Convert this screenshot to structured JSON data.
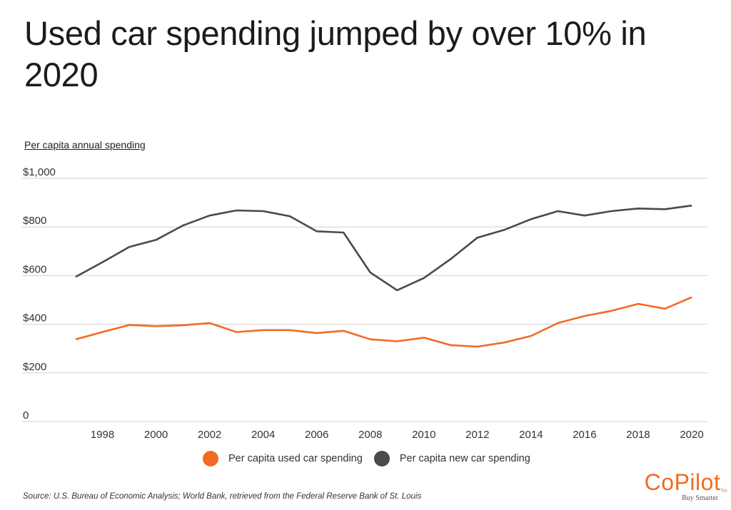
{
  "title": "Used car spending jumped by over 10% in 2020",
  "source": "Source:  U.S. Bureau of Economic Analysis;  World Bank, retrieved from the Federal Reserve Bank of St. Louis",
  "logo": {
    "brand": "CoPilot",
    "tm": "TM",
    "tagline": "Buy Smarter",
    "color": "#f26b22"
  },
  "chart_data": {
    "type": "line",
    "title": "Used car spending jumped by over 10% in 2020",
    "xlabel": "",
    "ylabel": "Per capita annual spending",
    "ylim": [
      0,
      1000
    ],
    "xlim": [
      1997,
      2020
    ],
    "grid": true,
    "legend_position": "bottom",
    "y_ticks": [
      {
        "value": 0,
        "label": "0"
      },
      {
        "value": 200,
        "label": "$200"
      },
      {
        "value": 400,
        "label": "$400"
      },
      {
        "value": 600,
        "label": "$600"
      },
      {
        "value": 800,
        "label": "$800"
      },
      {
        "value": 1000,
        "label": "$1,000"
      }
    ],
    "x_ticks": [
      1998,
      2000,
      2002,
      2004,
      2006,
      2008,
      2010,
      2012,
      2014,
      2016,
      2018,
      2020
    ],
    "x": [
      1997,
      1998,
      1999,
      2000,
      2001,
      2002,
      2003,
      2004,
      2005,
      2006,
      2007,
      2008,
      2009,
      2010,
      2011,
      2012,
      2013,
      2014,
      2015,
      2016,
      2017,
      2018,
      2019,
      2020
    ],
    "series": [
      {
        "name": "Per capita used car spending",
        "color": "#f26b22",
        "values": [
          338,
          368,
          397,
          392,
          396,
          405,
          368,
          376,
          376,
          364,
          373,
          338,
          330,
          345,
          314,
          308,
          325,
          352,
          405,
          434,
          455,
          484,
          464,
          511
        ]
      },
      {
        "name": "Per capita new car spending",
        "color": "#4a4a4a",
        "values": [
          595,
          655,
          718,
          747,
          806,
          847,
          868,
          865,
          844,
          782,
          777,
          613,
          540,
          590,
          668,
          756,
          788,
          832,
          865,
          847,
          865,
          876,
          873,
          888
        ]
      }
    ]
  }
}
